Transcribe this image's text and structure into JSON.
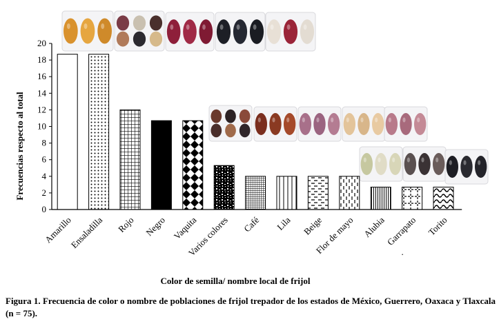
{
  "chart_data": {
    "type": "bar",
    "categories": [
      "Amarillo",
      "Ensaladilla",
      "Rojo",
      "Negro",
      "Vaquita",
      "Varios colores",
      "Café",
      "Lila",
      "Beige",
      "Flor de mayo",
      "Alubia",
      "Garrapato",
      "Torito"
    ],
    "values": [
      18.7,
      18.7,
      12.0,
      10.7,
      10.7,
      5.3,
      4.0,
      4.0,
      4.0,
      4.0,
      2.7,
      2.7,
      2.7
    ],
    "xlabel": "Color de semilla/ nombre local de frijol",
    "ylabel": "Frecuencias respecto al total",
    "ylim": [
      0,
      20
    ],
    "yticks": [
      "0",
      "2",
      "4",
      "6",
      "8",
      "10",
      "12",
      "14",
      "16",
      "18",
      "20"
    ],
    "grid": false,
    "legend": "none",
    "stray_mark": ".",
    "patterns": [
      "white",
      "dots",
      "grid",
      "black",
      "diamonds",
      "speckle",
      "grid-fine",
      "vertical-lines",
      "dashes",
      "vertical-dashes",
      "vertical-lines-dense",
      "cross",
      "waves"
    ]
  },
  "seed_photos": [
    {
      "name": "amarillo",
      "colors": [
        "#d9922e",
        "#e6a640",
        "#cf8a2a"
      ]
    },
    {
      "name": "ensaladilla",
      "colors": [
        "#7a3b46",
        "#c9c0b0",
        "#4a2f2c",
        "#b07a5a",
        "#2c2a30",
        "#d6b98a"
      ]
    },
    {
      "name": "rojo",
      "colors": [
        "#8e1f3a",
        "#a02a46",
        "#7f1a33"
      ]
    },
    {
      "name": "negro",
      "colors": [
        "#1d1f26",
        "#252832",
        "#1a1c22"
      ]
    },
    {
      "name": "vaquita",
      "colors": [
        "#e8e0d6",
        "#9a2438",
        "#e3dcd2"
      ]
    },
    {
      "name": "varios-colores",
      "colors": [
        "#6a3a2c",
        "#2c2224",
        "#8a4a3a",
        "#4a2e2a",
        "#a06a4a",
        "#30262a"
      ]
    },
    {
      "name": "cafe",
      "colors": [
        "#7a2e1e",
        "#8a3a22",
        "#a54a2a"
      ]
    },
    {
      "name": "lila",
      "colors": [
        "#a8708a",
        "#9b6480",
        "#b47c92"
      ]
    },
    {
      "name": "beige",
      "colors": [
        "#e3c49a",
        "#d8b68a",
        "#e8caa2"
      ]
    },
    {
      "name": "flor-de-mayo",
      "colors": [
        "#b87a8a",
        "#a86a7c",
        "#c48a96"
      ]
    },
    {
      "name": "alubia",
      "colors": [
        "#c6c8a0",
        "#e0dcc6",
        "#d8d6b8"
      ]
    },
    {
      "name": "garrapato",
      "colors": [
        "#5a5050",
        "#3a3234",
        "#6a5c5a"
      ]
    },
    {
      "name": "torito",
      "colors": [
        "#1e1e24",
        "#2a2a30",
        "#24242a"
      ]
    }
  ],
  "caption": {
    "text": "Figura 1. Frecuencia de color o nombre de poblaciones de frijol trepador de los estados de México, Guerrero, Oaxaca y Tlaxcala (n = 75)."
  }
}
